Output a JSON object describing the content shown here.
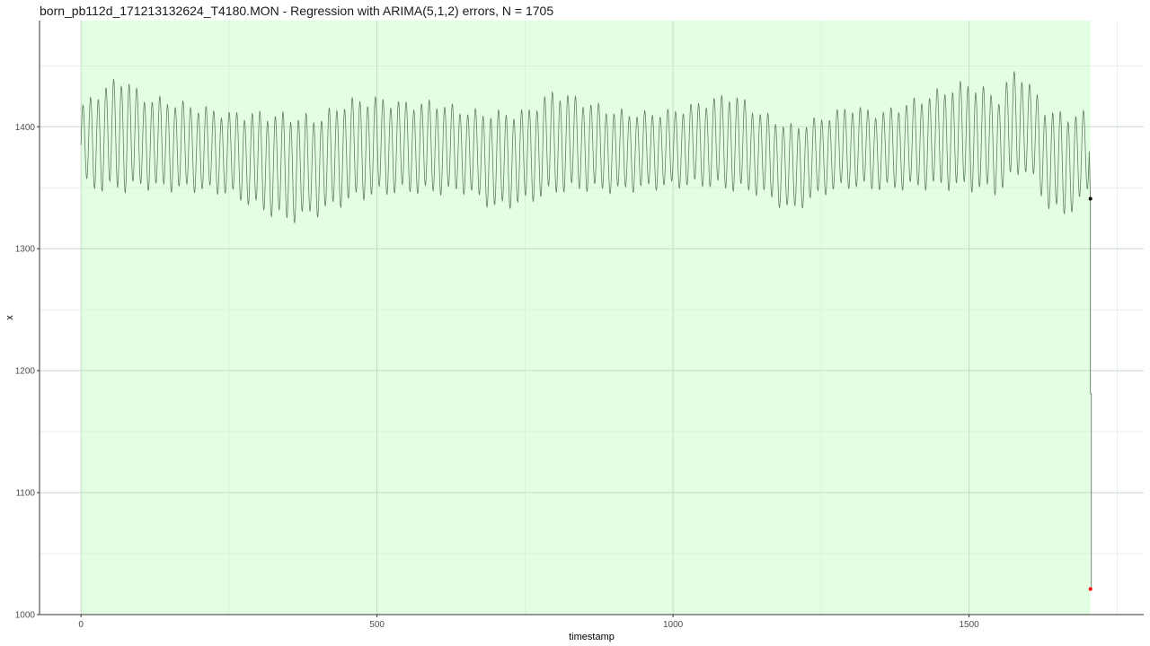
{
  "chart_data": {
    "type": "line",
    "title": "born_pb112d_171213132624_T4180.MON - Regression with ARIMA(5,1,2) errors, N = 1705",
    "xlabel": "timestamp",
    "ylabel": "x",
    "xlim": [
      -70,
      1795
    ],
    "ylim": [
      1000,
      1487
    ],
    "x_ticks": [
      0,
      500,
      1000,
      1500
    ],
    "y_ticks": [
      1000,
      1100,
      1200,
      1300,
      1400
    ],
    "grid": true,
    "legend": "none",
    "highlight_region": {
      "x_start": 0,
      "x_end": 1705,
      "color": "#e3ffe3"
    },
    "series": [
      {
        "color": "#5f7f5f",
        "oscillation_period": 13,
        "x": [
          0,
          25,
          50,
          75,
          100,
          150,
          200,
          250,
          300,
          350,
          400,
          450,
          500,
          550,
          600,
          650,
          700,
          750,
          800,
          850,
          900,
          950,
          1000,
          1050,
          1100,
          1150,
          1200,
          1250,
          1300,
          1350,
          1400,
          1450,
          1500,
          1550,
          1580,
          1600,
          1630,
          1660,
          1690,
          1703
        ],
        "center": [
          1385,
          1388,
          1392,
          1395,
          1388,
          1385,
          1382,
          1378,
          1372,
          1366,
          1368,
          1380,
          1384,
          1383,
          1383,
          1380,
          1372,
          1375,
          1388,
          1385,
          1380,
          1380,
          1382,
          1386,
          1388,
          1378,
          1365,
          1376,
          1384,
          1380,
          1385,
          1390,
          1393,
          1385,
          1405,
          1400,
          1375,
          1368,
          1375,
          1380
        ],
        "amplitude": [
          30,
          38,
          42,
          45,
          36,
          35,
          33,
          32,
          38,
          42,
          38,
          40,
          38,
          35,
          36,
          32,
          38,
          36,
          40,
          35,
          32,
          30,
          30,
          33,
          38,
          32,
          34,
          30,
          32,
          30,
          34,
          38,
          42,
          38,
          42,
          35,
          38,
          40,
          35,
          30
        ]
      }
    ],
    "final_drop": {
      "x": 1705,
      "y_start": 1341,
      "y_mid": 1181,
      "y_end": 1021
    },
    "points": [
      {
        "x": 1705,
        "y": 1341,
        "color": "#000000"
      },
      {
        "x": 1705,
        "y": 1021,
        "color": "#ff0000"
      }
    ]
  }
}
